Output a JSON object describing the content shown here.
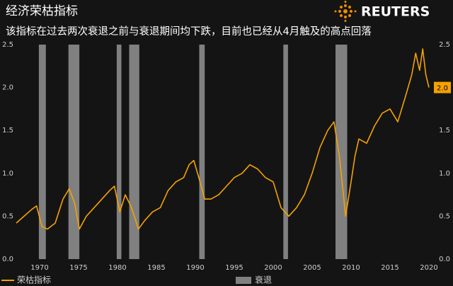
{
  "chart_data": {
    "type": "line",
    "title": "经济荣枯指标",
    "subtitle": "该指标在过去两次衰退之前与衰退期间均下跌，目前也已经从4月触及的高点回落",
    "logo": "REUTERS",
    "x": [
      1967,
      1968,
      1969,
      1969.6,
      1970.3,
      1971,
      1972,
      1973,
      1973.8,
      1974.5,
      1975.1,
      1976,
      1977,
      1978,
      1979,
      1979.6,
      1980.3,
      1981,
      1981.8,
      1982.7,
      1983.5,
      1984.5,
      1985.5,
      1986.5,
      1987.5,
      1988.5,
      1989.2,
      1989.8,
      1990.6,
      1991.2,
      1992,
      1993,
      1994,
      1995,
      1996,
      1997,
      1998,
      1999,
      2000,
      2001,
      2002,
      2003,
      2004,
      2005,
      2006,
      2007,
      2007.8,
      2008.5,
      2009.3,
      2010,
      2010.5,
      2011,
      2012,
      2013,
      2014,
      2015,
      2016,
      2017,
      2017.8,
      2018.3,
      2018.8,
      2019.2,
      2019.6,
      2020
    ],
    "series": [
      {
        "name": "荣枯指标",
        "color": "#f5a200",
        "values": [
          0.42,
          0.5,
          0.58,
          0.62,
          0.38,
          0.35,
          0.42,
          0.7,
          0.82,
          0.65,
          0.35,
          0.5,
          0.6,
          0.7,
          0.8,
          0.85,
          0.55,
          0.75,
          0.6,
          0.35,
          0.45,
          0.55,
          0.6,
          0.8,
          0.9,
          0.95,
          1.1,
          1.15,
          0.9,
          0.7,
          0.7,
          0.75,
          0.85,
          0.95,
          1.0,
          1.1,
          1.05,
          0.95,
          0.9,
          0.6,
          0.5,
          0.6,
          0.75,
          1.0,
          1.3,
          1.5,
          1.6,
          1.2,
          0.5,
          0.9,
          1.2,
          1.4,
          1.35,
          1.55,
          1.7,
          1.75,
          1.6,
          1.9,
          2.15,
          2.4,
          2.2,
          2.45,
          2.15,
          2.0
        ],
        "value_labels": [
          null,
          null,
          null,
          null,
          null,
          null,
          null,
          null,
          null,
          null,
          null,
          null,
          null,
          null,
          null,
          null,
          null,
          null,
          null,
          null,
          null,
          null,
          null,
          null,
          null,
          null,
          null,
          null,
          null,
          null,
          null,
          null,
          null,
          null,
          null,
          null,
          null,
          null,
          null,
          null,
          null,
          null,
          null,
          null,
          null,
          null,
          null,
          null,
          null,
          null,
          null,
          null,
          null,
          null,
          null,
          null,
          null,
          null,
          null,
          null,
          null,
          null,
          null,
          "2.0"
        ]
      }
    ],
    "shaded_periods": {
      "name": "衰退",
      "color": "#808080",
      "ranges": [
        [
          1969.9,
          1970.8
        ],
        [
          1973.7,
          1975.1
        ],
        [
          1979.9,
          1980.5
        ],
        [
          1981.5,
          1982.8
        ],
        [
          1990.5,
          1991.2
        ],
        [
          2001.3,
          2001.9
        ],
        [
          2008.0,
          2009.5
        ]
      ]
    },
    "xlim": [
      1967,
      2020.5
    ],
    "xticks": [
      1970,
      1975,
      1980,
      1985,
      1990,
      1995,
      2000,
      2005,
      2010,
      2015,
      2020
    ],
    "ylim": [
      0,
      2.5
    ],
    "yticks": [
      {
        "value": 0,
        "label": "0.0"
      },
      {
        "value": 0.5,
        "label": "0.5"
      },
      {
        "value": 1,
        "label": "1.0"
      },
      {
        "value": 1.5,
        "label": "1.5"
      },
      {
        "value": 2,
        "label": "2.0"
      },
      {
        "value": 2.5,
        "label": "2.5"
      }
    ],
    "grid": false
  }
}
